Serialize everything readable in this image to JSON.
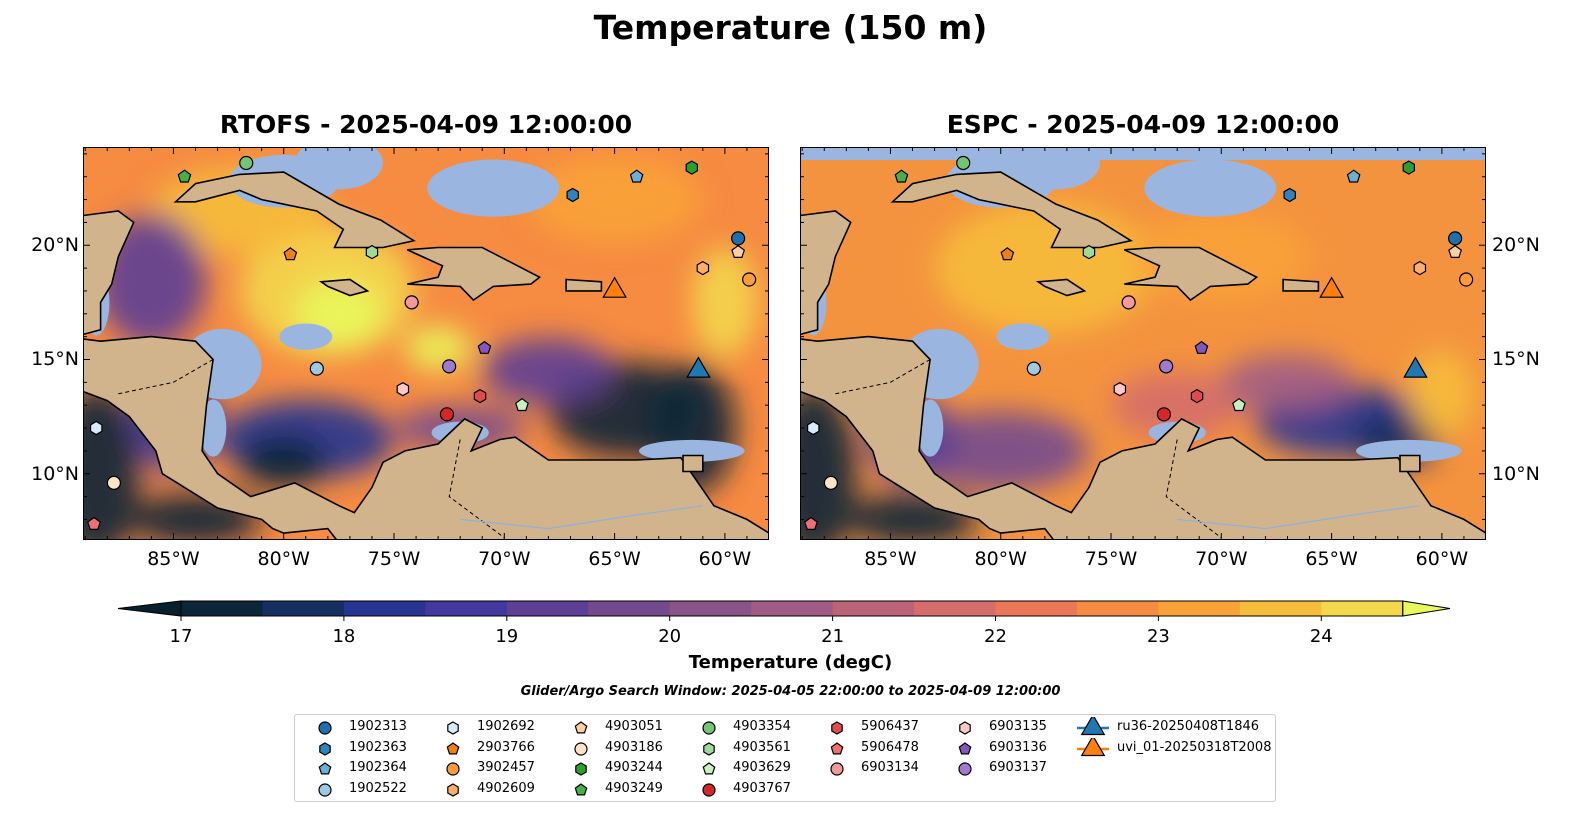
{
  "figure": {
    "title": "Temperature (150 m)",
    "search_window": "Glider/Argo Search Window: 2025-04-05 22:00:00 to 2025-04-09 12:00:00"
  },
  "chart_data": {
    "type": "heatmap",
    "panels": [
      {
        "title": "RTOFS - 2025-04-09 12:00:00"
      },
      {
        "title": "ESPC - 2025-04-09 12:00:00"
      }
    ],
    "lon_range": [
      -89.1,
      -58.0
    ],
    "lat_range": [
      7.1,
      24.3
    ],
    "lon_ticks": [
      {
        "value": -85,
        "label": "85°W"
      },
      {
        "value": -80,
        "label": "80°W"
      },
      {
        "value": -75,
        "label": "75°W"
      },
      {
        "value": -70,
        "label": "70°W"
      },
      {
        "value": -65,
        "label": "65°W"
      },
      {
        "value": -60,
        "label": "60°W"
      }
    ],
    "lat_ticks": [
      {
        "value": 20,
        "label": "20°N"
      },
      {
        "value": 15,
        "label": "15°N"
      },
      {
        "value": 10,
        "label": "10°N"
      }
    ],
    "colorbar": {
      "label": "Temperature (degC)",
      "min": 17,
      "max": 24.5,
      "step": 0.5,
      "extend": "both",
      "ticks": [
        17,
        18,
        19,
        20,
        21,
        22,
        23,
        24
      ],
      "tick_labels": [
        "17",
        "18",
        "19",
        "20",
        "21",
        "22",
        "23",
        "24"
      ],
      "colors": [
        "#0b2638",
        "#142f60",
        "#263492",
        "#43389d",
        "#5d3f95",
        "#744a8e",
        "#8a538a",
        "#a05c85",
        "#bb6479",
        "#d46d6c",
        "#ea7756",
        "#f68b42",
        "#f9a237",
        "#f6bc3c",
        "#f3d74c"
      ],
      "under_color": "#08202d",
      "over_color": "#e8fa5b"
    },
    "platforms": [
      {
        "id": "1902313",
        "marker": "circle",
        "color": "#1f6fae",
        "lon": -59.4,
        "lat": 20.3
      },
      {
        "id": "1902363",
        "marker": "hexagon",
        "color": "#3182bd",
        "lon": -66.9,
        "lat": 22.2
      },
      {
        "id": "1902364",
        "marker": "pentagon",
        "color": "#6baed6",
        "lon": -64.0,
        "lat": 23.0
      },
      {
        "id": "1902522",
        "marker": "circle",
        "color": "#9ecae1",
        "lon": -78.5,
        "lat": 14.6
      },
      {
        "id": "1902692",
        "marker": "hexagon",
        "color": "#d6ecfa",
        "lon": -88.5,
        "lat": 12.0
      },
      {
        "id": "2903766",
        "marker": "pentagon",
        "color": "#f07f12",
        "lon": -79.7,
        "lat": 19.6
      },
      {
        "id": "3902457",
        "marker": "circle",
        "color": "#fd9a3c",
        "lon": -58.9,
        "lat": 18.5
      },
      {
        "id": "4902609",
        "marker": "hexagon",
        "color": "#fdae6b",
        "lon": -61.0,
        "lat": 19.0
      },
      {
        "id": "4903051",
        "marker": "pentagon",
        "color": "#fdd0a2",
        "lon": -59.4,
        "lat": 19.7
      },
      {
        "id": "4903186",
        "marker": "circle",
        "color": "#fde3c8",
        "lon": -87.7,
        "lat": 9.6
      },
      {
        "id": "4903244",
        "marker": "hexagon",
        "color": "#2ca02c",
        "lon": -61.5,
        "lat": 23.4
      },
      {
        "id": "4903249",
        "marker": "pentagon",
        "color": "#46b046",
        "lon": -84.5,
        "lat": 23.0
      },
      {
        "id": "4903354",
        "marker": "circle",
        "color": "#74c476",
        "lon": -81.7,
        "lat": 23.6
      },
      {
        "id": "4903561",
        "marker": "hexagon",
        "color": "#a1d99b",
        "lon": -76.0,
        "lat": 19.7
      },
      {
        "id": "4903629",
        "marker": "pentagon",
        "color": "#c7f0c0",
        "lon": -69.2,
        "lat": 13.0
      },
      {
        "id": "4903767",
        "marker": "circle",
        "color": "#d62728",
        "lon": -72.6,
        "lat": 12.6
      },
      {
        "id": "5906437",
        "marker": "hexagon",
        "color": "#e04a4c",
        "lon": -71.1,
        "lat": 13.4
      },
      {
        "id": "5906478",
        "marker": "pentagon",
        "color": "#ee7073",
        "lon": -88.6,
        "lat": 7.8
      },
      {
        "id": "6903134",
        "marker": "circle",
        "color": "#f29a9a",
        "lon": -74.2,
        "lat": 17.5
      },
      {
        "id": "6903135",
        "marker": "hexagon",
        "color": "#fcc8c8",
        "lon": -74.6,
        "lat": 13.7
      },
      {
        "id": "6903136",
        "marker": "pentagon",
        "color": "#8457c0",
        "lon": -70.9,
        "lat": 15.5
      },
      {
        "id": "6903137",
        "marker": "circle",
        "color": "#a07ad0",
        "lon": -72.5,
        "lat": 14.7
      },
      {
        "id": "ru36-20250408T1846",
        "marker": "triangle",
        "color": "#1f77b4",
        "lon": -61.2,
        "lat": 14.6
      },
      {
        "id": "uvi_01-20250318T2008",
        "marker": "triangle",
        "color": "#ff7f0e",
        "lon": -65.0,
        "lat": 18.1
      }
    ]
  }
}
